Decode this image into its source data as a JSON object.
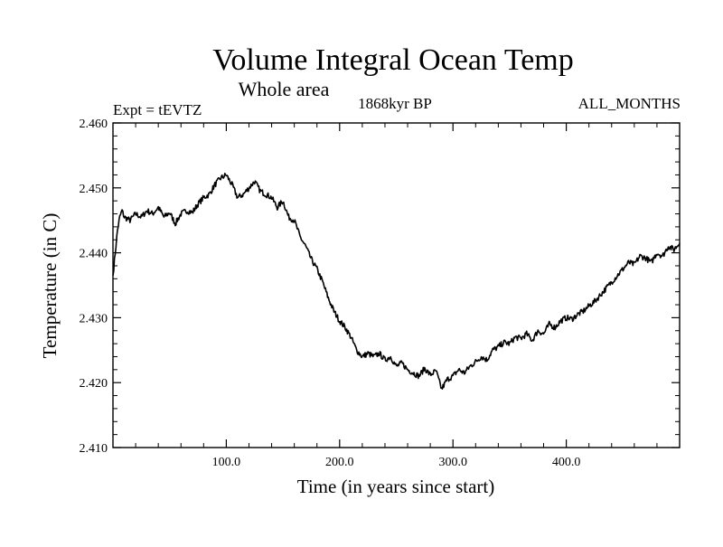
{
  "chart_data": {
    "type": "line",
    "title": "Volume Integral Ocean Temp",
    "subtitle": "Whole area",
    "left_label": "Expt = tEVTZ",
    "center_label": "1868kyr BP",
    "right_label": "ALL_MONTHS",
    "xlabel": "Time (in years since start)",
    "ylabel": "Temperature (in C)",
    "xlim": [
      0,
      500
    ],
    "ylim": [
      2.41,
      2.46
    ],
    "x_ticks": [
      100,
      200,
      300,
      400
    ],
    "x_tick_labels": [
      "100.0",
      "200.0",
      "300.0",
      "400.0"
    ],
    "y_ticks": [
      2.41,
      2.42,
      2.43,
      2.44,
      2.45,
      2.46
    ],
    "y_tick_labels": [
      "2.410",
      "2.420",
      "2.430",
      "2.440",
      "2.450",
      "2.460"
    ],
    "grid": false,
    "series": [
      {
        "name": "Volume Integral Ocean Temp",
        "color": "#000000",
        "x": [
          0,
          2,
          4,
          6,
          8,
          10,
          15,
          20,
          25,
          30,
          35,
          40,
          45,
          50,
          55,
          60,
          65,
          70,
          75,
          80,
          85,
          90,
          95,
          100,
          105,
          110,
          115,
          120,
          125,
          130,
          135,
          140,
          145,
          150,
          155,
          160,
          165,
          170,
          175,
          180,
          185,
          190,
          195,
          200,
          205,
          210,
          215,
          220,
          225,
          230,
          235,
          240,
          245,
          250,
          255,
          260,
          265,
          270,
          275,
          280,
          285,
          290,
          295,
          300,
          305,
          310,
          315,
          320,
          325,
          330,
          335,
          340,
          345,
          350,
          355,
          360,
          365,
          370,
          375,
          380,
          385,
          390,
          395,
          400,
          405,
          410,
          415,
          420,
          425,
          430,
          435,
          440,
          445,
          450,
          455,
          460,
          465,
          470,
          475,
          480,
          485,
          490,
          495,
          500
        ],
        "y": [
          2.4365,
          2.44,
          2.4435,
          2.4455,
          2.4465,
          2.4455,
          2.445,
          2.446,
          2.4455,
          2.4465,
          2.446,
          2.447,
          2.4455,
          2.4462,
          2.4445,
          2.446,
          2.4465,
          2.4462,
          2.4475,
          2.4485,
          2.449,
          2.4505,
          2.4515,
          2.452,
          2.4505,
          2.4485,
          2.449,
          2.45,
          2.451,
          2.4495,
          2.449,
          2.4485,
          2.447,
          2.448,
          2.4455,
          2.445,
          2.4425,
          2.441,
          2.439,
          2.4375,
          2.4355,
          2.433,
          2.431,
          2.4295,
          2.4285,
          2.427,
          2.425,
          2.424,
          2.4245,
          2.424,
          2.4245,
          2.4235,
          2.424,
          2.4225,
          2.423,
          2.422,
          2.4215,
          2.421,
          2.4222,
          2.4212,
          2.4218,
          2.419,
          2.4205,
          2.421,
          2.422,
          2.4215,
          2.4225,
          2.4232,
          2.424,
          2.4235,
          2.425,
          2.4255,
          2.4262,
          2.426,
          2.427,
          2.4268,
          2.4275,
          2.4265,
          2.428,
          2.4275,
          2.429,
          2.4285,
          2.4295,
          2.43,
          2.4298,
          2.4305,
          2.431,
          2.4318,
          2.4325,
          2.4335,
          2.4345,
          2.4355,
          2.4365,
          2.4375,
          2.4385,
          2.4382,
          2.4395,
          2.4392,
          2.4385,
          2.44,
          2.4395,
          2.441,
          2.4405,
          2.4415
        ]
      }
    ]
  }
}
